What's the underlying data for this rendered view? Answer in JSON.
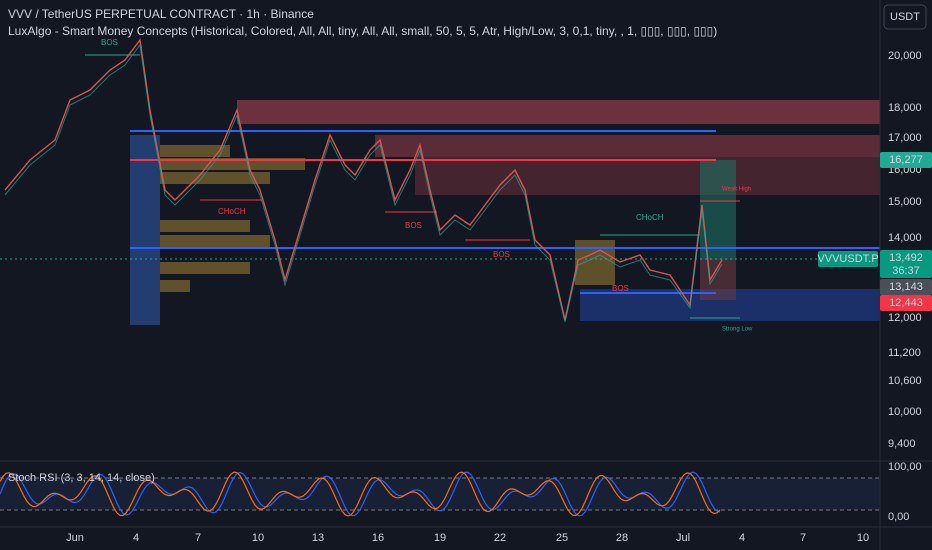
{
  "header": {
    "symbol": "VVV / TetherUS PERPETUAL CONTRACT · 1h · Binance",
    "indicator": "LuxAlgo - Smart Money Concepts (Historical, Colored, All, All, tiny, All, All, small, 50, 5, 5, Atr, High/Low, 3, 0,1, tiny, , 1, ▯▯▯, ▯▯▯, ▯▯▯)",
    "currency": "USDT"
  },
  "price_axis": [
    "20,000",
    "18,000",
    "17,000",
    "16,000",
    "15,000",
    "14,000",
    "12,000",
    "11,200",
    "10,600",
    "10,000",
    "9,400"
  ],
  "price_tags": {
    "level_high": "16,277",
    "symbol": "VVVUSDT.P",
    "last": "13,492",
    "countdown": "36:37",
    "mid": "13,143",
    "low": "12,443"
  },
  "annotations": {
    "bos_1": "BOS",
    "choch_1": "CHoCH",
    "bos_2": "BOS",
    "bos_3": "BOS",
    "choch_2": "CHoCH",
    "bos_4": "BOS",
    "weak_high": "Weak High",
    "strong_low": "Strong Low"
  },
  "oscillator": {
    "label": "Stoch RSI (3, 3, 14, 14, close)",
    "top": "100,00",
    "bottom": "0,00"
  },
  "time_axis": [
    "Jun",
    "4",
    "7",
    "10",
    "13",
    "16",
    "19",
    "22",
    "25",
    "28",
    "Jul",
    "4",
    "7",
    "10"
  ]
}
